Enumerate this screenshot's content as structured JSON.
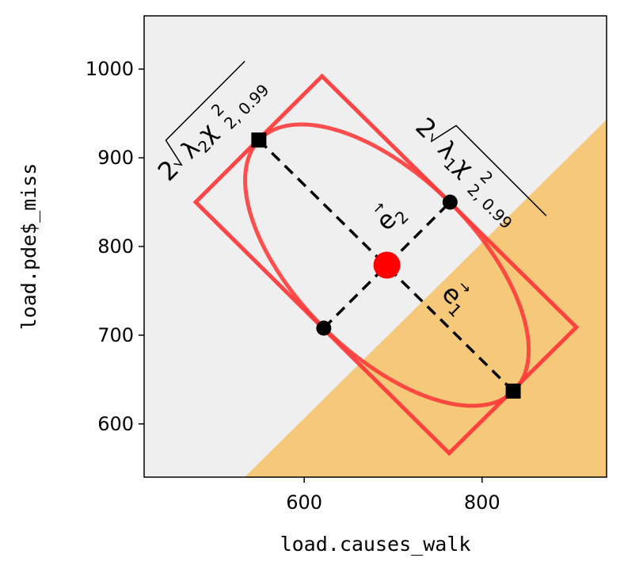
{
  "chart_data": {
    "type": "scatter",
    "xlabel": "load.causes_walk",
    "ylabel": "load.pde$_miss",
    "xlim": [
      420,
      940
    ],
    "ylim": [
      540,
      1060
    ],
    "x_ticks": [
      600,
      800
    ],
    "y_ticks": [
      600,
      700,
      800,
      900,
      1000
    ],
    "grid": false,
    "colors": {
      "background": "#efefef",
      "region": "#f6c87a",
      "ellipse": "#ff3b3b",
      "marker": "#000000",
      "center": "#ff0000"
    },
    "shaded_region": {
      "boundary": [
        [
          533,
          540
        ],
        [
          940,
          943
        ]
      ]
    },
    "center": [
      693,
      779
    ],
    "major_axis_endpoints": [
      [
        549,
        920
      ],
      [
        835,
        637
      ]
    ],
    "minor_axis_endpoints": [
      [
        622,
        708
      ],
      [
        764,
        850
      ]
    ],
    "bounding_rectangle": [
      [
        478,
        850
      ],
      [
        620,
        992
      ],
      [
        906,
        709
      ],
      [
        763,
        567
      ]
    ],
    "ellipse": {
      "center": [
        693,
        779
      ],
      "semi_axis_1": 201,
      "semi_axis_2": 100,
      "angle_deg": -44.6
    },
    "annotations": {
      "e1": {
        "base": "e",
        "sub": "1"
      },
      "e2": {
        "base": "e",
        "sub": "2"
      },
      "lambda1": {
        "coef": "2",
        "lam": "λ",
        "lam_sub": "1",
        "chi": "χ",
        "chi_sup": "2",
        "chi_sub": "2, 0.99"
      },
      "lambda2": {
        "coef": "2",
        "lam": "λ",
        "lam_sub": "2",
        "chi": "χ",
        "chi_sup": "2",
        "chi_sub": "2, 0.99"
      }
    }
  }
}
